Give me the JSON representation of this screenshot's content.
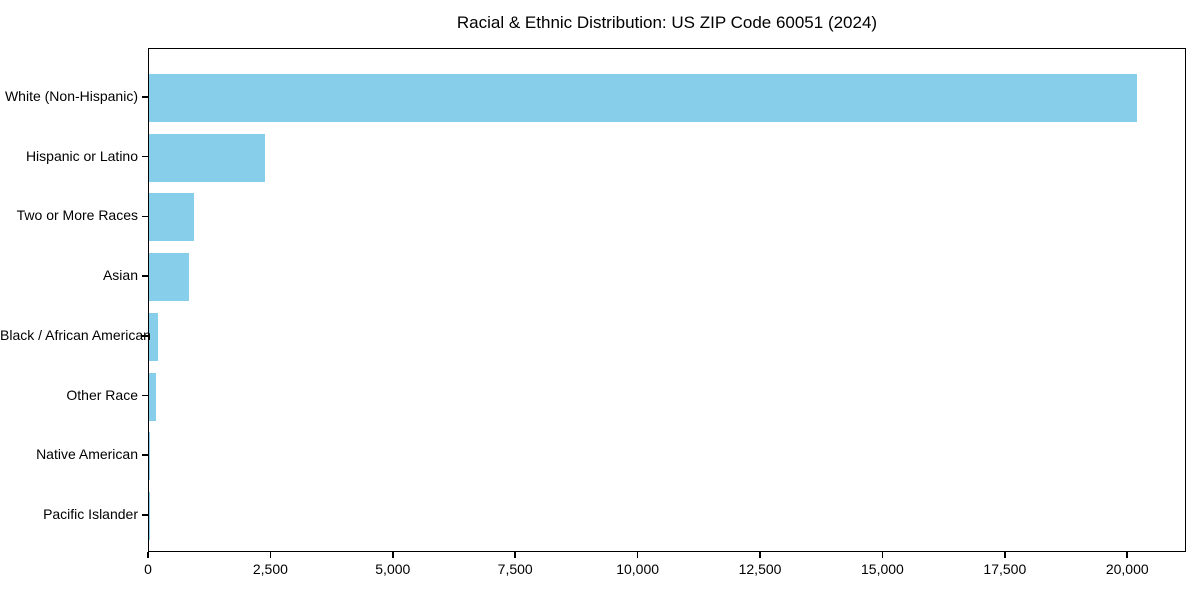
{
  "chart_data": {
    "type": "bar",
    "orientation": "horizontal",
    "title": "Racial & Ethnic Distribution: US ZIP Code 60051 (2024)",
    "categories": [
      "White (Non-Hispanic)",
      "Hispanic or Latino",
      "Two or More Races",
      "Asian",
      "Black / African American",
      "Other Race",
      "Native American",
      "Pacific Islander"
    ],
    "values": [
      20180,
      2360,
      920,
      820,
      180,
      150,
      25,
      5
    ],
    "xlabel": "",
    "ylabel": "",
    "xlim": [
      0,
      21200
    ],
    "x_ticks": [
      0,
      2500,
      5000,
      7500,
      10000,
      12500,
      15000,
      17500,
      20000
    ],
    "x_tick_labels": [
      "0",
      "2,500",
      "5,000",
      "7,500",
      "10,000",
      "12,500",
      "15,000",
      "17,500",
      "20,000"
    ],
    "grid": false,
    "legend_position": "none",
    "bar_color": "#87CEEB",
    "frame_color": "#000000",
    "background_color": "#ffffff"
  }
}
